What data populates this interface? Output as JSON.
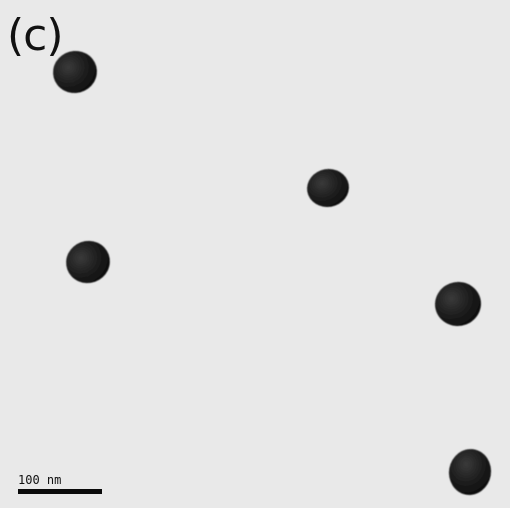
{
  "panel": {
    "label": "(c)"
  },
  "scale_bar": {
    "label": "100 nm"
  },
  "colors": {
    "background": "#e9e9e9",
    "particle": "#1a1a1a",
    "text": "#111111"
  }
}
